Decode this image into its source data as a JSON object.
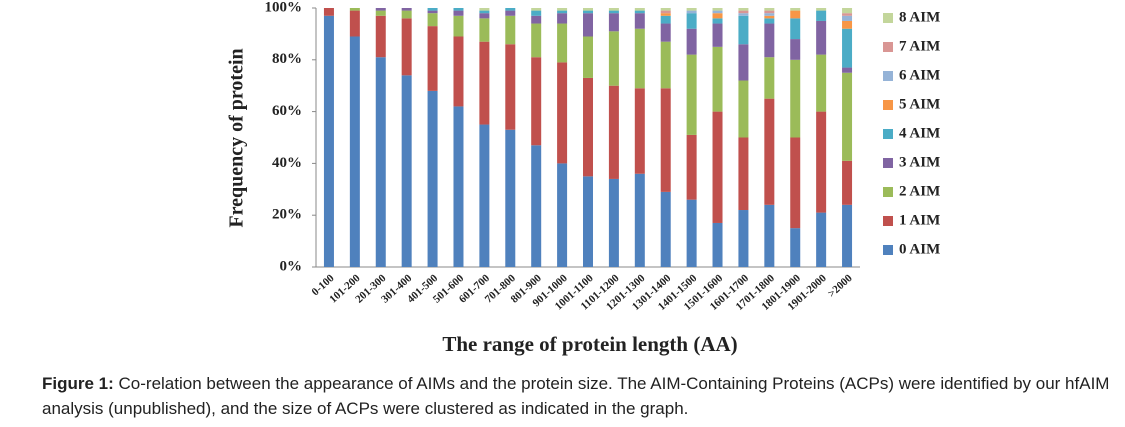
{
  "chart_data": {
    "type": "stacked_bar",
    "y_label": "Frequency of protein",
    "x_label": "The range of protein length (AA)",
    "categories": [
      "0-100",
      "101-200",
      "201-300",
      "301-400",
      "401-500",
      "501-600",
      "601-700",
      "701-800",
      "801-900",
      "901-1000",
      "1001-1100",
      "1101-1200",
      "1201-1300",
      "1301-1400",
      "1401-1500",
      "1501-1600",
      "1601-1700",
      "1701-1800",
      "1801-1900",
      "1901-2000",
      ">2000"
    ],
    "series": [
      {
        "name": "0 AIM",
        "color": "#4f81bd",
        "values": [
          97,
          89,
          81,
          74,
          68,
          62,
          55,
          53,
          47,
          40,
          35,
          34,
          36,
          29,
          26,
          17,
          22,
          24,
          15,
          21,
          24
        ]
      },
      {
        "name": "1 AIM",
        "color": "#c0504d",
        "values": [
          3,
          10,
          16,
          22,
          25,
          27,
          32,
          33,
          34,
          39,
          38,
          36,
          33,
          40,
          25,
          43,
          28,
          41,
          35,
          39,
          17
        ]
      },
      {
        "name": "2 AIM",
        "color": "#9bbb59",
        "values": [
          0,
          1,
          2,
          3,
          5,
          8,
          9,
          11,
          13,
          15,
          16,
          21,
          23,
          18,
          31,
          25,
          22,
          16,
          30,
          22,
          34
        ]
      },
      {
        "name": "3 AIM",
        "color": "#8064a2",
        "values": [
          0,
          0,
          1,
          1,
          1,
          2,
          2,
          2,
          3,
          4,
          9,
          7,
          6,
          7,
          10,
          9,
          14,
          13,
          8,
          13,
          2
        ]
      },
      {
        "name": "4 AIM",
        "color": "#4bacc6",
        "values": [
          0,
          0,
          0,
          0,
          1,
          1,
          1,
          1,
          2,
          1,
          1,
          1,
          1,
          3,
          6,
          2,
          11,
          2,
          8,
          4,
          15
        ]
      },
      {
        "name": "5 AIM",
        "color": "#f79646",
        "values": [
          0,
          0,
          0,
          0,
          0,
          0,
          0,
          0,
          0,
          0,
          0,
          0,
          0,
          1,
          0,
          2,
          0,
          1,
          3,
          0,
          3
        ]
      },
      {
        "name": "6 AIM",
        "color": "#95b3d7",
        "values": [
          0,
          0,
          0,
          0,
          0,
          0,
          0,
          0,
          0,
          0,
          0,
          0,
          0,
          0,
          1,
          1,
          1,
          1,
          0,
          0,
          2
        ]
      },
      {
        "name": "7 AIM",
        "color": "#d99694",
        "values": [
          0,
          0,
          0,
          0,
          0,
          0,
          0,
          0,
          0,
          0,
          0,
          0,
          0,
          1,
          0,
          0,
          1,
          1,
          0,
          0,
          1
        ]
      },
      {
        "name": "8 AIM",
        "color": "#c3d69b",
        "values": [
          0,
          0,
          0,
          0,
          0,
          0,
          1,
          0,
          1,
          1,
          1,
          1,
          1,
          1,
          1,
          1,
          1,
          1,
          1,
          1,
          2
        ]
      }
    ],
    "ylim": [
      0,
      100
    ],
    "yticks": [
      {
        "value": 0,
        "label": "0%"
      },
      {
        "value": 20,
        "label": "20%"
      },
      {
        "value": 40,
        "label": "40%"
      },
      {
        "value": 60,
        "label": "60%"
      },
      {
        "value": 80,
        "label": "80%"
      },
      {
        "value": 100,
        "label": "100%"
      }
    ],
    "legend": "right"
  },
  "caption": {
    "label": "Figure 1:",
    "text": " Co-relation between the appearance of AIMs and the protein size. The AIM-Containing Proteins (ACPs) were identified by our hfAIM analysis (unpublished), and the size of ACPs were clustered as indicated in the graph."
  }
}
